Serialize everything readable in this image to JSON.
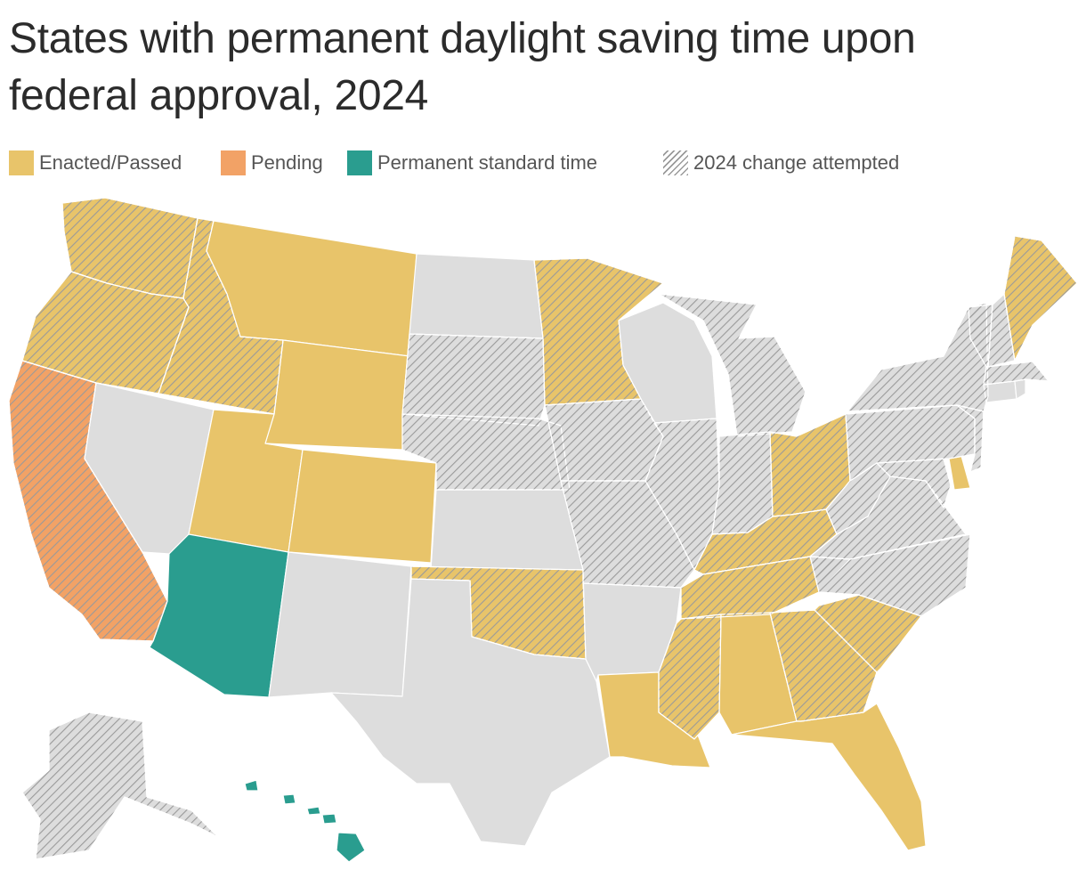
{
  "title_line1": "States with permanent daylight saving time upon",
  "title_line2": "federal approval, 2024",
  "legend": {
    "enacted": "Enacted/Passed",
    "pending": "Pending",
    "standard": "Permanent standard time",
    "attempted": "2024 change attempted"
  },
  "colors": {
    "enacted": "#e8c46a",
    "pending": "#f2a266",
    "standard": "#2a9d8f",
    "none": "#dddddd",
    "hatch": "#9a9a9a"
  },
  "states": [
    {
      "id": "WA",
      "status": "enacted",
      "attempted": true
    },
    {
      "id": "OR",
      "status": "enacted",
      "attempted": true
    },
    {
      "id": "CA",
      "status": "pending",
      "attempted": true
    },
    {
      "id": "ID",
      "status": "enacted",
      "attempted": true
    },
    {
      "id": "NV",
      "status": "none",
      "attempted": false
    },
    {
      "id": "MT",
      "status": "enacted",
      "attempted": false
    },
    {
      "id": "WY",
      "status": "enacted",
      "attempted": false
    },
    {
      "id": "UT",
      "status": "enacted",
      "attempted": false
    },
    {
      "id": "CO",
      "status": "enacted",
      "attempted": false
    },
    {
      "id": "AZ",
      "status": "standard",
      "attempted": false
    },
    {
      "id": "NM",
      "status": "none",
      "attempted": false
    },
    {
      "id": "ND",
      "status": "none",
      "attempted": false
    },
    {
      "id": "SD",
      "status": "none",
      "attempted": true
    },
    {
      "id": "NE",
      "status": "none",
      "attempted": true
    },
    {
      "id": "KS",
      "status": "none",
      "attempted": false
    },
    {
      "id": "OK",
      "status": "enacted",
      "attempted": true
    },
    {
      "id": "TX",
      "status": "none",
      "attempted": false
    },
    {
      "id": "MN",
      "status": "enacted",
      "attempted": true
    },
    {
      "id": "IA",
      "status": "none",
      "attempted": true
    },
    {
      "id": "MO",
      "status": "none",
      "attempted": true
    },
    {
      "id": "AR",
      "status": "none",
      "attempted": false
    },
    {
      "id": "LA",
      "status": "enacted",
      "attempted": false
    },
    {
      "id": "WI",
      "status": "none",
      "attempted": false
    },
    {
      "id": "IL",
      "status": "none",
      "attempted": true
    },
    {
      "id": "MI",
      "status": "none",
      "attempted": true
    },
    {
      "id": "IN",
      "status": "none",
      "attempted": true
    },
    {
      "id": "OH",
      "status": "enacted",
      "attempted": true
    },
    {
      "id": "KY",
      "status": "enacted",
      "attempted": true
    },
    {
      "id": "TN",
      "status": "enacted",
      "attempted": true
    },
    {
      "id": "MS",
      "status": "enacted",
      "attempted": true
    },
    {
      "id": "AL",
      "status": "enacted",
      "attempted": false
    },
    {
      "id": "GA",
      "status": "enacted",
      "attempted": true
    },
    {
      "id": "FL",
      "status": "enacted",
      "attempted": false
    },
    {
      "id": "SC",
      "status": "enacted",
      "attempted": true
    },
    {
      "id": "NC",
      "status": "none",
      "attempted": true
    },
    {
      "id": "VA",
      "status": "none",
      "attempted": true
    },
    {
      "id": "WV",
      "status": "none",
      "attempted": true
    },
    {
      "id": "MD",
      "status": "none",
      "attempted": true
    },
    {
      "id": "DE",
      "status": "enacted",
      "attempted": false
    },
    {
      "id": "PA",
      "status": "none",
      "attempted": true
    },
    {
      "id": "NJ",
      "status": "none",
      "attempted": true
    },
    {
      "id": "NY",
      "status": "none",
      "attempted": true
    },
    {
      "id": "CT",
      "status": "none",
      "attempted": false
    },
    {
      "id": "RI",
      "status": "none",
      "attempted": false
    },
    {
      "id": "MA",
      "status": "none",
      "attempted": true
    },
    {
      "id": "VT",
      "status": "none",
      "attempted": true
    },
    {
      "id": "NH",
      "status": "none",
      "attempted": true
    },
    {
      "id": "ME",
      "status": "enacted",
      "attempted": true
    },
    {
      "id": "AK",
      "status": "none",
      "attempted": true
    },
    {
      "id": "HI",
      "status": "standard",
      "attempted": false
    }
  ]
}
